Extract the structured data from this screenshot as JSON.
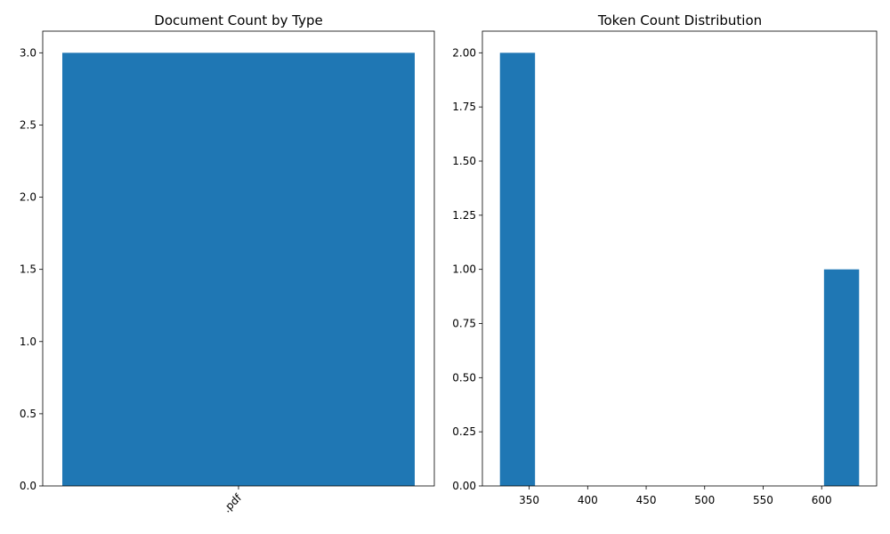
{
  "chart_data": [
    {
      "type": "bar",
      "title": "Document Count by Type",
      "xlabel": "",
      "ylabel": "",
      "categories": [
        ".pdf"
      ],
      "values": [
        3
      ],
      "ylim": [
        0,
        3.15
      ],
      "yticks": [
        0.0,
        0.5,
        1.0,
        1.5,
        2.0,
        2.5,
        3.0
      ],
      "ytick_labels": [
        "0.0",
        "0.5",
        "1.0",
        "1.5",
        "2.0",
        "2.5",
        "3.0"
      ],
      "xtick_rotation": "45 degrees",
      "color": "#1f77b4",
      "grid": false
    },
    {
      "type": "bar",
      "title": "Token Count Distribution",
      "xlabel": "",
      "ylabel": "",
      "bins": [
        {
          "x0": 325,
          "x1": 355,
          "count": 2
        },
        {
          "x0": 355,
          "x1": 385,
          "count": 0
        },
        {
          "x0": 385,
          "x1": 415,
          "count": 0
        },
        {
          "x0": 415,
          "x1": 445,
          "count": 0
        },
        {
          "x0": 445,
          "x1": 475,
          "count": 0
        },
        {
          "x0": 475,
          "x1": 505,
          "count": 0
        },
        {
          "x0": 505,
          "x1": 535,
          "count": 0
        },
        {
          "x0": 535,
          "x1": 565,
          "count": 0
        },
        {
          "x0": 565,
          "x1": 595,
          "count": 0
        },
        {
          "x0": 602,
          "x1": 632,
          "count": 1
        }
      ],
      "xlim": [
        310,
        647
      ],
      "ylim": [
        0,
        2.1
      ],
      "xticks": [
        350,
        400,
        450,
        500,
        550,
        600
      ],
      "xtick_labels": [
        "350",
        "400",
        "450",
        "500",
        "550",
        "600"
      ],
      "yticks": [
        0.0,
        0.25,
        0.5,
        0.75,
        1.0,
        1.25,
        1.5,
        1.75,
        2.0
      ],
      "ytick_labels": [
        "0.00",
        "0.25",
        "0.50",
        "0.75",
        "1.00",
        "1.25",
        "1.50",
        "1.75",
        "2.00"
      ],
      "color": "#1f77b4",
      "grid": false
    }
  ]
}
